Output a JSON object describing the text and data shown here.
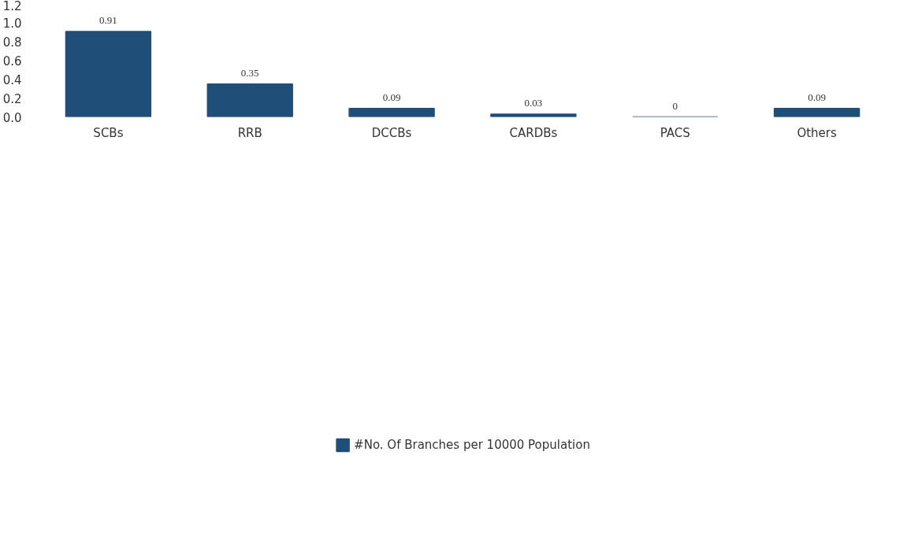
{
  "chart_data": {
    "type": "bar",
    "categories": [
      "SCBs",
      "RRB",
      "DCCBs",
      "CARDBs",
      "PACS",
      "Others"
    ],
    "series": [
      {
        "name": "#No. Of Branches per 10000 Population",
        "color": "#1f4e79",
        "values": [
          0.91,
          0.35,
          0.09,
          0.03,
          0,
          0.09
        ]
      }
    ],
    "ylim": [
      0,
      1.2
    ],
    "yticks": [
      {
        "value": 0,
        "label": "0.0"
      },
      {
        "value": 0.2,
        "label": "0.2"
      },
      {
        "value": 0.4,
        "label": "0.4"
      },
      {
        "value": 0.6,
        "label": "0.6"
      },
      {
        "value": 0.8,
        "label": "0.8"
      },
      {
        "value": 1,
        "label": "1.0"
      },
      {
        "value": 1.2,
        "label": "1.2"
      }
    ],
    "data_labels": true,
    "grid": false,
    "legend": "bottom"
  }
}
